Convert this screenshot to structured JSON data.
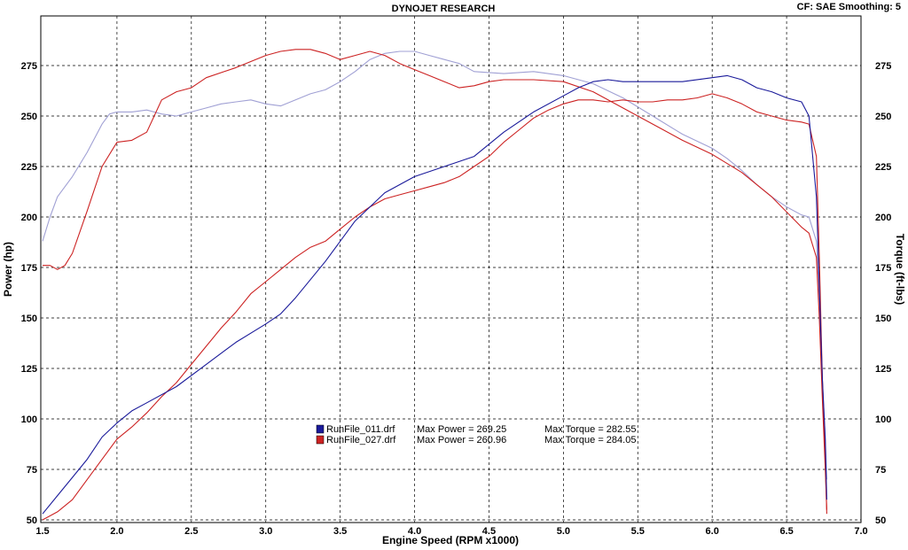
{
  "header": {
    "title": "DYNOJET RESEARCH",
    "info": "CF: SAE  Smoothing: 5"
  },
  "chart_data": {
    "type": "line",
    "title": "DYNOJET RESEARCH",
    "xlabel": "Engine Speed (RPM x1000)",
    "ylabel_left": "Power (hp)",
    "ylabel_right": "Torque (ft-lbs)",
    "xlim": [
      1.5,
      7.0
    ],
    "ylim": [
      50,
      300
    ],
    "x_ticks": [
      "1.5",
      "2.0",
      "2.5",
      "3.0",
      "3.5",
      "4.0",
      "4.5",
      "5.0",
      "5.5",
      "6.0",
      "6.5",
      "7.0"
    ],
    "y_ticks": [
      "50",
      "75",
      "100",
      "125",
      "150",
      "175",
      "200",
      "225",
      "250",
      "275"
    ],
    "grid": true,
    "legend_position": "center",
    "colors": {
      "run011_power": "#1a1a9a",
      "run011_torque": "#a0a0d4",
      "run027_power": "#cc2222",
      "run027_torque": "#cc2222"
    },
    "legend": [
      {
        "file": "RunFile_011.drf",
        "power_label": "Max Power = 269.25",
        "torque_label": "Max Torque = 282.55",
        "color": "#1a1a9a"
      },
      {
        "file": "RunFile_027.drf",
        "power_label": "Max Power = 260.96",
        "torque_label": "Max Torque = 284.05",
        "color": "#cc2222"
      }
    ],
    "series": [
      {
        "key": "run011_power",
        "x": [
          1.5,
          1.6,
          1.7,
          1.8,
          1.9,
          2.0,
          2.1,
          2.2,
          2.4,
          2.6,
          2.8,
          3.0,
          3.1,
          3.2,
          3.4,
          3.6,
          3.8,
          4.0,
          4.2,
          4.4,
          4.6,
          4.8,
          5.0,
          5.1,
          5.2,
          5.3,
          5.4,
          5.6,
          5.8,
          6.0,
          6.1,
          6.2,
          6.3,
          6.4,
          6.5,
          6.6,
          6.65,
          6.7,
          6.72,
          6.74,
          6.76,
          6.77
        ],
        "y": [
          53,
          62,
          71,
          80,
          91,
          98,
          104,
          108,
          116,
          127,
          138,
          147,
          152,
          160,
          178,
          198,
          212,
          220,
          225,
          230,
          242,
          252,
          260,
          264,
          267,
          268,
          267,
          267,
          267,
          269,
          270,
          268,
          264,
          262,
          259,
          257,
          250,
          210,
          165,
          120,
          90,
          60
        ]
      },
      {
        "key": "run011_torque",
        "x": [
          1.5,
          1.55,
          1.6,
          1.7,
          1.8,
          1.9,
          1.95,
          2.0,
          2.1,
          2.2,
          2.3,
          2.4,
          2.5,
          2.6,
          2.7,
          2.8,
          2.9,
          3.0,
          3.1,
          3.2,
          3.3,
          3.4,
          3.5,
          3.6,
          3.7,
          3.8,
          3.9,
          4.0,
          4.1,
          4.2,
          4.3,
          4.4,
          4.6,
          4.8,
          5.0,
          5.2,
          5.4,
          5.6,
          5.8,
          6.0,
          6.1,
          6.2,
          6.3,
          6.4,
          6.5,
          6.6,
          6.65,
          6.7,
          6.72,
          6.74,
          6.76,
          6.77
        ],
        "y": [
          188,
          200,
          210,
          220,
          232,
          246,
          251,
          252,
          252,
          253,
          251,
          250,
          252,
          254,
          256,
          257,
          258,
          256,
          255,
          258,
          261,
          263,
          267,
          272,
          278,
          281,
          282,
          282,
          280,
          278,
          276,
          272,
          271,
          272,
          270,
          266,
          259,
          250,
          241,
          234,
          229,
          223,
          216,
          210,
          205,
          201,
          200,
          188,
          160,
          120,
          90,
          70
        ]
      },
      {
        "key": "run027_power",
        "x": [
          1.5,
          1.6,
          1.7,
          1.8,
          1.9,
          2.0,
          2.1,
          2.2,
          2.3,
          2.4,
          2.5,
          2.6,
          2.7,
          2.8,
          2.9,
          3.0,
          3.1,
          3.2,
          3.3,
          3.4,
          3.5,
          3.6,
          3.7,
          3.8,
          3.9,
          4.0,
          4.1,
          4.2,
          4.3,
          4.4,
          4.5,
          4.6,
          4.7,
          4.8,
          4.9,
          5.0,
          5.1,
          5.2,
          5.3,
          5.4,
          5.5,
          5.6,
          5.7,
          5.8,
          5.9,
          6.0,
          6.1,
          6.2,
          6.3,
          6.4,
          6.5,
          6.6,
          6.65,
          6.7,
          6.72,
          6.74,
          6.76,
          6.77
        ],
        "y": [
          50,
          54,
          60,
          70,
          80,
          90,
          96,
          103,
          111,
          118,
          127,
          136,
          145,
          153,
          162,
          168,
          174,
          180,
          185,
          188,
          194,
          200,
          205,
          209,
          211,
          213,
          215,
          217,
          220,
          225,
          230,
          237,
          243,
          249,
          253,
          256,
          258,
          258,
          257,
          258,
          257,
          257,
          258,
          258,
          259,
          261,
          259,
          256,
          252,
          250,
          248,
          247,
          246,
          230,
          180,
          120,
          80,
          53
        ]
      },
      {
        "key": "run027_torque",
        "x": [
          1.5,
          1.55,
          1.6,
          1.65,
          1.7,
          1.8,
          1.9,
          2.0,
          2.1,
          2.2,
          2.3,
          2.4,
          2.5,
          2.6,
          2.8,
          3.0,
          3.1,
          3.2,
          3.3,
          3.4,
          3.5,
          3.6,
          3.7,
          3.8,
          3.9,
          4.0,
          4.1,
          4.2,
          4.3,
          4.4,
          4.5,
          4.6,
          4.8,
          5.0,
          5.2,
          5.4,
          5.6,
          5.8,
          6.0,
          6.2,
          6.4,
          6.6,
          6.65,
          6.7,
          6.72,
          6.74,
          6.76,
          6.77
        ],
        "y": [
          176,
          176,
          174,
          176,
          182,
          203,
          225,
          237,
          238,
          242,
          258,
          262,
          264,
          269,
          274,
          280,
          282,
          283,
          283,
          281,
          278,
          280,
          282,
          280,
          276,
          273,
          270,
          267,
          264,
          265,
          267,
          268,
          268,
          267,
          262,
          254,
          246,
          238,
          231,
          222,
          210,
          195,
          192,
          180,
          150,
          110,
          75,
          55
        ]
      }
    ]
  }
}
